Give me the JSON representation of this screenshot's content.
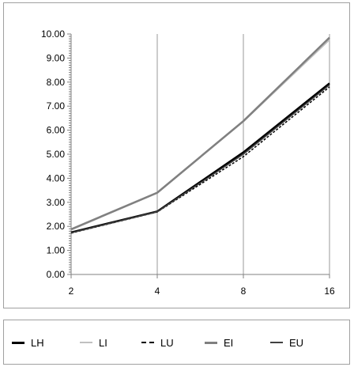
{
  "chart_data": {
    "type": "line",
    "x": [
      "2",
      "4",
      "8",
      "16"
    ],
    "ylim": [
      0,
      10
    ],
    "y_ticks": [
      "0.00",
      "1.00",
      "2.00",
      "3.00",
      "4.00",
      "5.00",
      "6.00",
      "7.00",
      "8.00",
      "9.00",
      "10.00"
    ],
    "grid": "vertical",
    "legend_position": "bottom",
    "series": [
      {
        "name": "LH",
        "values": [
          1.75,
          2.62,
          5.08,
          7.95
        ],
        "color": "#000000",
        "style": "solid-thick"
      },
      {
        "name": "LI",
        "values": [
          1.85,
          3.38,
          6.35,
          9.75
        ],
        "color": "#c0c0c0",
        "style": "solid"
      },
      {
        "name": "LU",
        "values": [
          1.72,
          2.6,
          4.9,
          7.8
        ],
        "color": "#000000",
        "style": "dashed"
      },
      {
        "name": "EI",
        "values": [
          1.88,
          3.4,
          6.38,
          9.85
        ],
        "color": "#808080",
        "style": "solid-thick"
      },
      {
        "name": "EU",
        "values": [
          1.73,
          2.61,
          5.0,
          7.88
        ],
        "color": "#404040",
        "style": "solid"
      }
    ]
  }
}
